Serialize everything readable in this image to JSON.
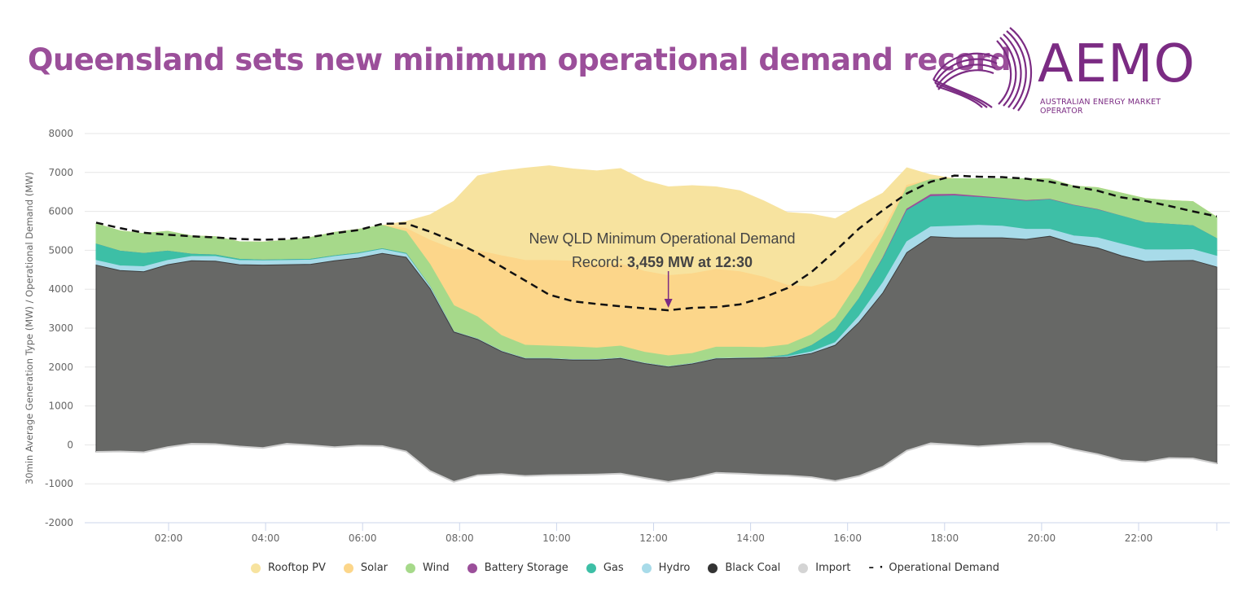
{
  "header": {
    "title": "Queensland sets new minimum operational demand record",
    "logo_name": "AEMO",
    "logo_subtitle": "AUSTRALIAN ENERGY MARKET OPERATOR",
    "brand_color": "#7b2b83",
    "title_color": "#9b4f9a"
  },
  "chart_data": {
    "type": "area",
    "stacked": true,
    "title": "",
    "xlabel": "",
    "ylabel": "30min Average Generation Type (MW) / Operational Demand (MW)",
    "ylim": [
      -2000,
      8000
    ],
    "yticks": [
      8000,
      7000,
      6000,
      5000,
      4000,
      3000,
      2000,
      1000,
      0,
      -1000,
      -2000
    ],
    "xticks": [
      "02:00",
      "04:00",
      "06:00",
      "08:00",
      "10:00",
      "12:00",
      "14:00",
      "16:00",
      "18:00",
      "20:00",
      "22:00"
    ],
    "x": [
      "00:30",
      "01:00",
      "01:30",
      "02:00",
      "02:30",
      "03:00",
      "03:30",
      "04:00",
      "04:30",
      "05:00",
      "05:30",
      "06:00",
      "06:30",
      "07:00",
      "07:30",
      "08:00",
      "08:30",
      "09:00",
      "09:30",
      "10:00",
      "10:30",
      "11:00",
      "11:30",
      "12:00",
      "12:30",
      "13:00",
      "13:30",
      "14:00",
      "14:30",
      "15:00",
      "15:30",
      "16:00",
      "16:30",
      "17:00",
      "17:30",
      "18:00",
      "18:30",
      "19:00",
      "19:30",
      "20:00",
      "20:30",
      "21:00",
      "21:30",
      "22:00",
      "22:30",
      "23:00",
      "23:30",
      "24:00"
    ],
    "grid": true,
    "legend_position": "bottom",
    "series": [
      {
        "name": "Import",
        "color": "#d4d4d4",
        "values": [
          -180,
          -170,
          -190,
          -60,
          30,
          20,
          -40,
          -80,
          30,
          -10,
          -60,
          -20,
          -30,
          -170,
          -670,
          -950,
          -780,
          -750,
          -800,
          -780,
          -770,
          -760,
          -740,
          -850,
          -950,
          -860,
          -720,
          -740,
          -770,
          -790,
          -830,
          -930,
          -800,
          -560,
          -150,
          40,
          0,
          -40,
          0,
          40,
          40,
          -120,
          -240,
          -400,
          -440,
          -340,
          -350,
          -480
        ]
      },
      {
        "name": "Black Coal",
        "color": "#676866",
        "values": [
          4800,
          4650,
          4640,
          4690,
          4700,
          4700,
          4670,
          4700,
          4600,
          4650,
          4790,
          4820,
          4950,
          4990,
          4690,
          3850,
          3490,
          3150,
          3010,
          2990,
          2950,
          2940,
          2960,
          2940,
          2950,
          2940,
          2930,
          2960,
          3000,
          3040,
          3180,
          3490,
          3950,
          4470,
          5090,
          5310,
          5320,
          5360,
          5320,
          5240,
          5320,
          5290,
          5300,
          5260,
          5150,
          5070,
          5090,
          5050
        ]
      },
      {
        "name": "Hydro",
        "color": "#a8dbe9",
        "values": [
          120,
          120,
          130,
          110,
          110,
          120,
          110,
          110,
          110,
          110,
          110,
          110,
          100,
          80,
          40,
          10,
          10,
          10,
          10,
          10,
          10,
          10,
          10,
          10,
          10,
          10,
          10,
          10,
          10,
          20,
          40,
          70,
          160,
          260,
          280,
          250,
          300,
          320,
          300,
          260,
          180,
          200,
          260,
          300,
          300,
          280,
          280,
          280
        ]
      },
      {
        "name": "Gas",
        "color": "#3dbfa6",
        "values": [
          420,
          380,
          340,
          240,
          60,
          40,
          30,
          20,
          20,
          20,
          20,
          20,
          20,
          20,
          10,
          0,
          0,
          0,
          0,
          0,
          0,
          0,
          0,
          0,
          0,
          0,
          0,
          0,
          0,
          40,
          160,
          310,
          450,
          620,
          800,
          780,
          780,
          720,
          700,
          720,
          760,
          780,
          720,
          720,
          700,
          660,
          610,
          450
        ]
      },
      {
        "name": "Battery Storage",
        "color": "#9b4f9a",
        "values": [
          0,
          0,
          0,
          0,
          0,
          0,
          0,
          0,
          0,
          0,
          0,
          0,
          0,
          0,
          0,
          0,
          0,
          0,
          0,
          0,
          0,
          0,
          0,
          0,
          0,
          0,
          0,
          0,
          0,
          0,
          0,
          0,
          0,
          20,
          40,
          50,
          40,
          30,
          20,
          20,
          10,
          10,
          10,
          0,
          0,
          0,
          0,
          0
        ]
      },
      {
        "name": "Wind",
        "color": "#a6d98a",
        "values": [
          520,
          520,
          510,
          510,
          470,
          470,
          450,
          460,
          500,
          560,
          600,
          610,
          600,
          560,
          570,
          670,
          570,
          400,
          340,
          320,
          330,
          300,
          310,
          280,
          280,
          260,
          290,
          280,
          260,
          260,
          280,
          340,
          450,
          560,
          550,
          390,
          400,
          450,
          500,
          560,
          520,
          490,
          560,
          590,
          620,
          610,
          620,
          550
        ]
      },
      {
        "name": "Solar",
        "color": "#fcd68a",
        "values": [
          0,
          0,
          0,
          0,
          0,
          0,
          0,
          0,
          0,
          0,
          0,
          0,
          0,
          80,
          620,
          1440,
          1700,
          2050,
          2180,
          2200,
          2200,
          2130,
          2110,
          2080,
          2060,
          2050,
          2000,
          1940,
          1810,
          1530,
          1230,
          950,
          560,
          150,
          60,
          0,
          0,
          0,
          0,
          0,
          0,
          0,
          0,
          0,
          0,
          0,
          0,
          0
        ]
      },
      {
        "name": "Rooftop PV",
        "color": "#f7e39f",
        "values": [
          0,
          0,
          0,
          0,
          0,
          0,
          0,
          0,
          0,
          0,
          0,
          0,
          0,
          180,
          650,
          1240,
          1920,
          2180,
          2370,
          2430,
          2370,
          2420,
          2450,
          2330,
          2280,
          2260,
          2120,
          2080,
          1960,
          1870,
          1870,
          1580,
          1380,
          950,
          450,
          120,
          0,
          0,
          0,
          0,
          0,
          0,
          0,
          0,
          0,
          0,
          0,
          0
        ]
      },
      {
        "name": "Operational Demand",
        "color": "#111111",
        "line": "dashed",
        "values": [
          5710,
          5570,
          5450,
          5400,
          5360,
          5330,
          5290,
          5270,
          5290,
          5340,
          5440,
          5520,
          5680,
          5690,
          5480,
          5230,
          4930,
          4580,
          4220,
          3860,
          3690,
          3620,
          3560,
          3510,
          3459,
          3520,
          3540,
          3610,
          3790,
          4030,
          4440,
          4980,
          5560,
          6030,
          6460,
          6760,
          6920,
          6890,
          6880,
          6840,
          6760,
          6640,
          6530,
          6360,
          6270,
          6140,
          6000,
          5870
        ]
      }
    ],
    "annotations": [
      {
        "text_line1": "New QLD Minimum Operational Demand",
        "text_line2_prefix": "Record: ",
        "text_line2_bold": "3,459 MW at 12:30",
        "target_x": "12:30",
        "target_y": 3459,
        "arrow_color": "#7b2b83"
      }
    ]
  },
  "legend": {
    "items": [
      {
        "label": "Rooftop PV",
        "color": "#f7e39f",
        "marker": "dot"
      },
      {
        "label": "Solar",
        "color": "#fcd68a",
        "marker": "dot"
      },
      {
        "label": "Wind",
        "color": "#a6d98a",
        "marker": "dot"
      },
      {
        "label": "Battery Storage",
        "color": "#9b4f9a",
        "marker": "dot"
      },
      {
        "label": "Gas",
        "color": "#3dbfa6",
        "marker": "dot"
      },
      {
        "label": "Hydro",
        "color": "#a8dbe9",
        "marker": "dot"
      },
      {
        "label": "Black Coal",
        "color": "#333333",
        "marker": "dot"
      },
      {
        "label": "Import",
        "color": "#d4d4d4",
        "marker": "dot"
      },
      {
        "label": "Operational Demand",
        "color": "#111111",
        "marker": "dash"
      }
    ]
  }
}
